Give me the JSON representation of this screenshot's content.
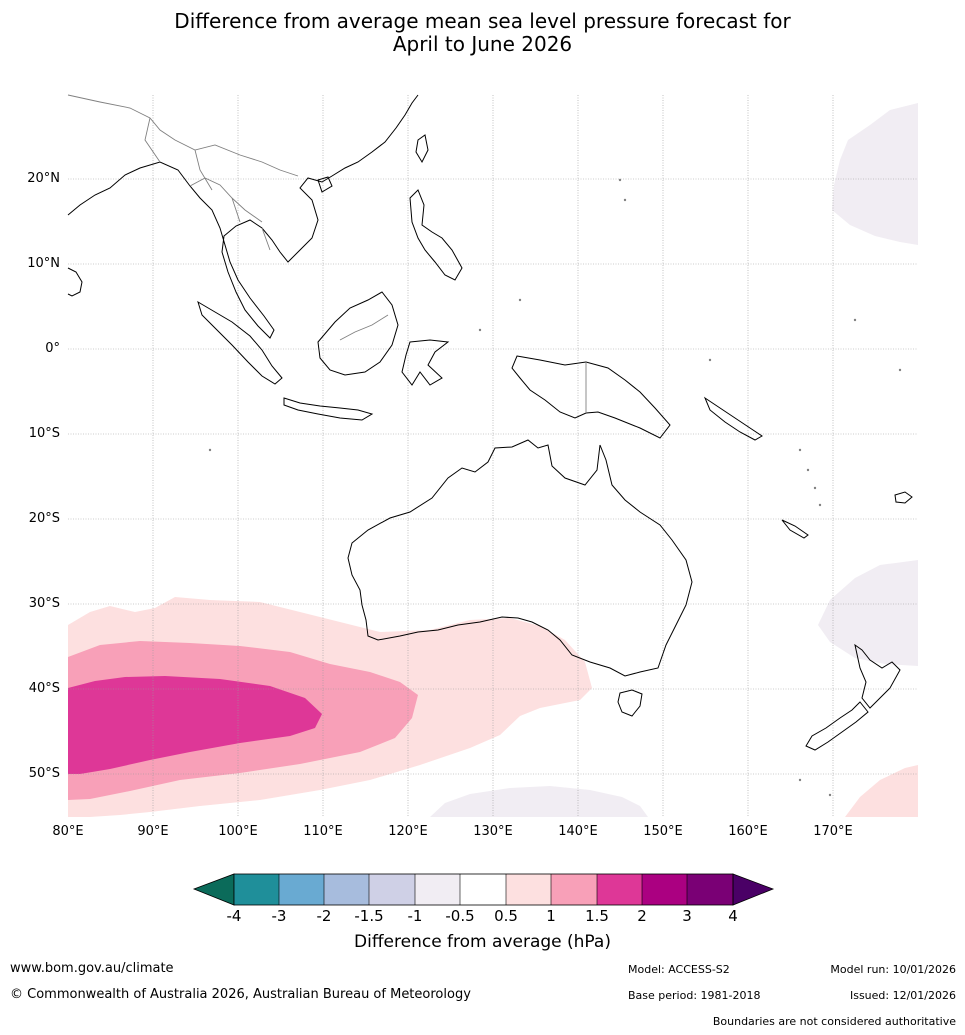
{
  "title_line1": "Difference from average mean sea level pressure forecast for",
  "title_line2": "April to June 2026",
  "map": {
    "lat_labels": [
      "20°N",
      "10°N",
      "0°",
      "10°S",
      "20°S",
      "30°S",
      "40°S",
      "50°S"
    ],
    "lon_labels": [
      "80°E",
      "90°E",
      "100°E",
      "110°E",
      "120°E",
      "130°E",
      "140°E",
      "150°E",
      "160°E",
      "170°E"
    ],
    "extent": {
      "lon_min": 80,
      "lon_max": 180,
      "lat_min": -55,
      "lat_max": 30
    }
  },
  "colorbar": {
    "title": "Difference from average (hPa)",
    "ticks": [
      "-4",
      "-3",
      "-2",
      "-1.5",
      "-1",
      "-0.5",
      "0.5",
      "1",
      "1.5",
      "2",
      "3",
      "4"
    ],
    "colors": {
      "lt_m4": "#0b6b5a",
      "m4_m3": "#1f8f9a",
      "m3_m2": "#69aad2",
      "m2_m15": "#a7bcdd",
      "m15_m1": "#cfd0e6",
      "m1_m05": "#f1edf3",
      "m05_05": "#ffffff",
      "p05_1": "#fde0e0",
      "p1_15": "#f8a0b8",
      "p15_2": "#de3797",
      "p2_3": "#ab0081",
      "p3_4": "#7a0075",
      "gt_4": "#4a0066"
    }
  },
  "footer": {
    "website": "www.bom.gov.au/climate",
    "copyright": "© Commonwealth of Australia 2026, Australian Bureau of Meteorology",
    "model": "Model: ACCESS-S2",
    "base_period": "Base period: 1981-2018",
    "model_run": "Model run: 10/01/2026",
    "issued": "Issued: 12/01/2026",
    "disclaimer": "Boundaries are not considered authoritative"
  }
}
